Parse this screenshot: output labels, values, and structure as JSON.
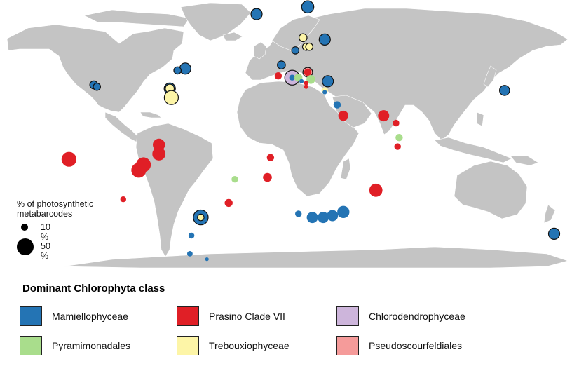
{
  "size_legend": {
    "title_line1": "% of photosynthetic",
    "title_line2": "metabarcodes",
    "small_label": "10 %",
    "large_label": "50 %"
  },
  "class_legend": {
    "title": "Dominant Chlorophyta class",
    "items": [
      {
        "key": "mam",
        "label": "Mamiellophyceae",
        "color": "#2474b4"
      },
      {
        "key": "pra",
        "label": "Prasino Clade VII",
        "color": "#e01f26"
      },
      {
        "key": "chl",
        "label": "Chlorodendrophyceae",
        "color": "#cdb5db"
      },
      {
        "key": "pyr",
        "label": "Pyramimonadales",
        "color": "#a9dd8c"
      },
      {
        "key": "tre",
        "label": "Trebouxiophyceae",
        "color": "#fdf5a7"
      },
      {
        "key": "pse",
        "label": "Pseudoscourfeldiales",
        "color": "#f59b9a"
      }
    ]
  },
  "map_colors": {
    "land": "#c4c4c4",
    "sea": "#ffffff",
    "border": "#ffffff"
  },
  "stations": [
    {
      "name": "east-greenland",
      "lon": -19,
      "lat": 77,
      "pct": 25,
      "cls": "mam",
      "outlined": true
    },
    {
      "name": "svalbard",
      "lon": 14,
      "lat": 81,
      "pct": 30,
      "cls": "mam",
      "outlined": true
    },
    {
      "name": "gulf-of-st-lawrence",
      "lon": -65,
      "lat": 47,
      "pct": 25,
      "cls": "mam",
      "outlined": true
    },
    {
      "name": "maine",
      "lon": -70,
      "lat": 46,
      "pct": 10,
      "cls": "mam",
      "outlined": true
    },
    {
      "name": "oregon",
      "lon": -124,
      "lat": 38,
      "pct": 12,
      "cls": "mam",
      "outlined": true
    },
    {
      "name": "oregon-2",
      "lon": -122,
      "lat": 37,
      "pct": 10,
      "cls": "mam",
      "outlined": true
    },
    {
      "name": "chesapeake",
      "lon": -75,
      "lat": 36,
      "pct": 25,
      "cls": "mam",
      "outlined": true
    },
    {
      "name": "chesapeake-inner",
      "lon": -75,
      "lat": 36,
      "pct": 15,
      "cls": "tre",
      "outlined": true
    },
    {
      "name": "sargasso",
      "lon": -74,
      "lat": 31,
      "pct": 40,
      "cls": "tre",
      "outlined": true
    },
    {
      "name": "north-sea",
      "lon": 6,
      "lat": 57,
      "pct": 10,
      "cls": "mam",
      "outlined": true
    },
    {
      "name": "oslofjord",
      "lon": 11,
      "lat": 64,
      "pct": 12,
      "cls": "tre",
      "outlined": true
    },
    {
      "name": "baltic",
      "lon": 25,
      "lat": 63,
      "pct": 25,
      "cls": "mam",
      "outlined": true
    },
    {
      "name": "skagerrak-a",
      "lon": 13,
      "lat": 59,
      "pct": 10,
      "cls": "tre",
      "outlined": true
    },
    {
      "name": "skagerrak-b",
      "lon": 15,
      "lat": 59,
      "pct": 10,
      "cls": "tre",
      "outlined": true
    },
    {
      "name": "english-channel",
      "lon": -3,
      "lat": 49,
      "pct": 12,
      "cls": "mam",
      "outlined": true
    },
    {
      "name": "bay-of-biscay",
      "lon": -5,
      "lat": 43,
      "pct": 10,
      "cls": "pra",
      "outlined": false
    },
    {
      "name": "gulf-of-lion",
      "lon": 4,
      "lat": 42,
      "pct": 45,
      "cls": "chl",
      "outlined": true
    },
    {
      "name": "gulf-of-lion-core",
      "lon": 4,
      "lat": 42,
      "pct": 6,
      "cls": "mam",
      "outlined": false
    },
    {
      "name": "ligurian",
      "lon": 8,
      "lat": 42,
      "pct": 12,
      "cls": "pyr",
      "outlined": false
    },
    {
      "name": "adriatic",
      "lon": 14,
      "lat": 45,
      "pct": 18,
      "cls": "pse",
      "outlined": true
    },
    {
      "name": "adriatic-core",
      "lon": 14,
      "lat": 45,
      "pct": 10,
      "cls": "pra",
      "outlined": false
    },
    {
      "name": "ionian",
      "lon": 16,
      "lat": 41,
      "pct": 15,
      "cls": "pyr",
      "outlined": false
    },
    {
      "name": "tyrrhenian-a",
      "lon": 13,
      "lat": 39,
      "pct": 3,
      "cls": "pra",
      "outlined": false
    },
    {
      "name": "tyrrhenian-b",
      "lon": 13,
      "lat": 37,
      "pct": 3,
      "cls": "pra",
      "outlined": false
    },
    {
      "name": "tyrrhenian-c",
      "lon": 10,
      "lat": 40,
      "pct": 3,
      "cls": "mam",
      "outlined": false
    },
    {
      "name": "aegean",
      "lon": 27,
      "lat": 40,
      "pct": 25,
      "cls": "mam",
      "outlined": true
    },
    {
      "name": "levantine",
      "lon": 25,
      "lat": 35,
      "pct": 8,
      "cls": "tre",
      "outlined": false
    },
    {
      "name": "crete",
      "lon": 25,
      "lat": 34,
      "pct": 3,
      "cls": "mam",
      "outlined": false
    },
    {
      "name": "suez",
      "lon": 33,
      "lat": 27,
      "pct": 10,
      "cls": "mam",
      "outlined": false
    },
    {
      "name": "red-sea",
      "lon": 37,
      "lat": 21,
      "pct": 20,
      "cls": "pra",
      "outlined": false
    },
    {
      "name": "arabian-sea",
      "lon": 63,
      "lat": 21,
      "pct": 25,
      "cls": "pra",
      "outlined": false
    },
    {
      "name": "india-west",
      "lon": 71,
      "lat": 17,
      "pct": 8,
      "cls": "pra",
      "outlined": false
    },
    {
      "name": "ceylon",
      "lon": 73,
      "lat": 9,
      "pct": 10,
      "cls": "pyr",
      "outlined": false
    },
    {
      "name": "indian-ocean-n",
      "lon": 72,
      "lat": 4,
      "pct": 8,
      "cls": "pra",
      "outlined": false
    },
    {
      "name": "japan",
      "lon": 141,
      "lat": 35,
      "pct": 20,
      "cls": "mam",
      "outlined": true
    },
    {
      "name": "madagascar",
      "lon": 58,
      "lat": -20,
      "pct": 35,
      "cls": "pra",
      "outlined": false
    },
    {
      "name": "cape-basin",
      "lon": 8,
      "lat": -33,
      "pct": 8,
      "cls": "mam",
      "outlined": false
    },
    {
      "name": "benguela",
      "lon": 17,
      "lat": -35,
      "pct": 25,
      "cls": "mam",
      "outlined": false
    },
    {
      "name": "agulhas-a",
      "lon": 24,
      "lat": -35,
      "pct": 25,
      "cls": "mam",
      "outlined": false
    },
    {
      "name": "agulhas-b",
      "lon": 30,
      "lat": -34,
      "pct": 25,
      "cls": "mam",
      "outlined": false
    },
    {
      "name": "agulhas-c",
      "lon": 37,
      "lat": -32,
      "pct": 30,
      "cls": "mam",
      "outlined": false
    },
    {
      "name": "tasman",
      "lon": 173,
      "lat": -44,
      "pct": 25,
      "cls": "mam",
      "outlined": true
    },
    {
      "name": "mid-atlantic-s",
      "lon": -10,
      "lat": -2,
      "pct": 10,
      "cls": "pra",
      "outlined": false
    },
    {
      "name": "south-atlantic",
      "lon": -12,
      "lat": -13,
      "pct": 15,
      "cls": "pra",
      "outlined": false
    },
    {
      "name": "brazil-east",
      "lon": -33,
      "lat": -14,
      "pct": 8,
      "cls": "pyr",
      "outlined": false
    },
    {
      "name": "south-atlantic-w",
      "lon": -37,
      "lat": -27,
      "pct": 12,
      "cls": "pra",
      "outlined": false
    },
    {
      "name": "rio-de-la-plata",
      "lon": -55,
      "lat": -35,
      "pct": 45,
      "cls": "mam",
      "outlined": true
    },
    {
      "name": "rio-de-la-plata-core",
      "lon": -55,
      "lat": -35,
      "pct": 8,
      "cls": "tre",
      "outlined": true
    },
    {
      "name": "patagonia-a",
      "lon": -61,
      "lat": -45,
      "pct": 6,
      "cls": "mam",
      "outlined": false
    },
    {
      "name": "patagonia-b",
      "lon": -62,
      "lat": -55,
      "pct": 5,
      "cls": "mam",
      "outlined": false
    },
    {
      "name": "drake",
      "lon": -51,
      "lat": -58,
      "pct": 2,
      "cls": "mam",
      "outlined": false
    },
    {
      "name": "panama-a",
      "lon": -82,
      "lat": 5,
      "pct": 30,
      "cls": "pra",
      "outlined": false
    },
    {
      "name": "panama-b",
      "lon": -82,
      "lat": 0,
      "pct": 35,
      "cls": "pra",
      "outlined": false
    },
    {
      "name": "galapagos-a",
      "lon": -92,
      "lat": -6,
      "pct": 45,
      "cls": "pra",
      "outlined": false
    },
    {
      "name": "galapagos-b",
      "lon": -95,
      "lat": -9,
      "pct": 45,
      "cls": "pra",
      "outlined": false
    },
    {
      "name": "east-pacific",
      "lon": -140,
      "lat": -3,
      "pct": 45,
      "cls": "pra",
      "outlined": false
    },
    {
      "name": "south-pacific",
      "lon": -105,
      "lat": -25,
      "pct": 6,
      "cls": "pra",
      "outlined": false
    }
  ]
}
